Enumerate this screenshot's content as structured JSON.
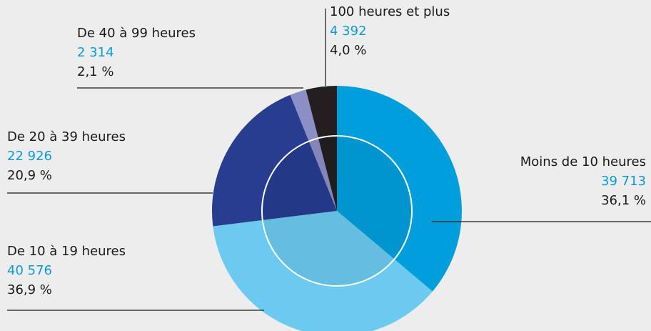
{
  "chart_data": {
    "type": "pie",
    "categories": [
      "Moins de 10 heures",
      "De 10 à 19 heures",
      "De 20 à 39 heures",
      "De 40 à 99 heures",
      "100 heures et plus"
    ],
    "values": [
      39713,
      40576,
      22926,
      2314,
      4392
    ],
    "value_labels": [
      "39 713",
      "40 576",
      "22 926",
      "2 314",
      "4 392"
    ],
    "shares": [
      36.1,
      36.9,
      20.9,
      2.1,
      4.0
    ],
    "share_labels": [
      "36,1 %",
      "36,9 %",
      "20,9 %",
      "2,1 %",
      "4,0 %"
    ],
    "colors": [
      "#009fdb",
      "#6cc9ef",
      "#263d90",
      "#8b8fc6",
      "#231f20"
    ]
  }
}
